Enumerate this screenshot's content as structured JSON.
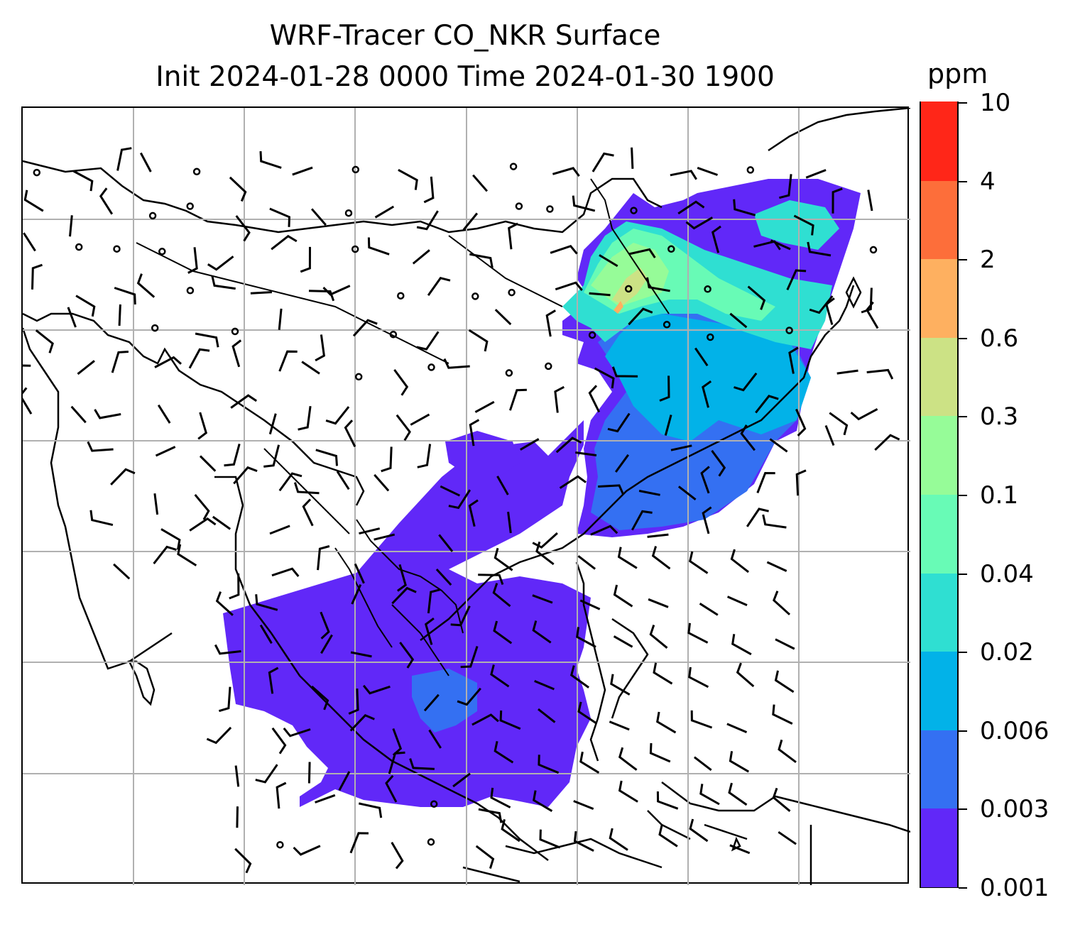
{
  "title": {
    "line1": "WRF-Tracer CO_NKR Surface",
    "line2": "Init 2024-01-28 0000 Time 2024-01-30 1900"
  },
  "map": {
    "grid": true,
    "overlays": [
      "coastlines",
      "country-borders",
      "wind-barbs",
      "calm-circles"
    ]
  },
  "colorbar": {
    "unit": "ppm",
    "labels": [
      "0.001",
      "0.003",
      "0.006",
      "0.02",
      "0.04",
      "0.1",
      "0.3",
      "0.6",
      "2",
      "4",
      "10"
    ],
    "colors": [
      "#6128f8",
      "#3470f2",
      "#02b2e8",
      "#2fdfd2",
      "#68fbb6",
      "#96fc98",
      "#cce285",
      "#feb060",
      "#fd6e3a",
      "#ff2618"
    ]
  }
}
